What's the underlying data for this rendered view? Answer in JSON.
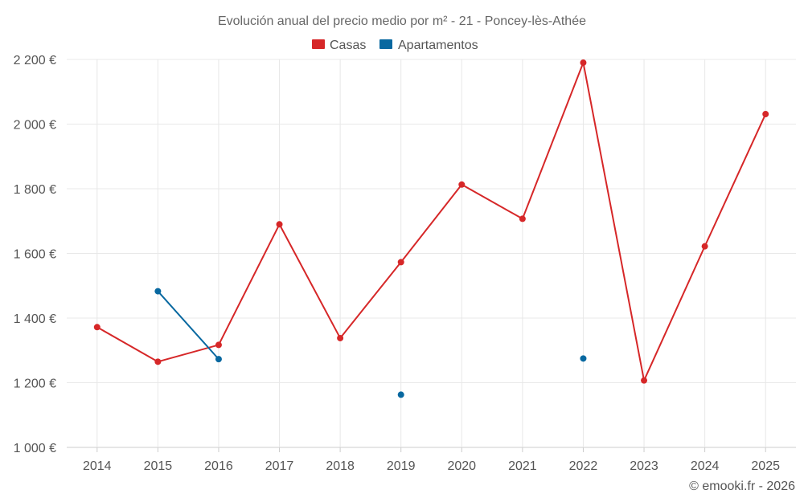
{
  "chart_data": {
    "type": "line",
    "title": "Evolución anual del precio medio por m² - 21 - Poncey-lès-Athée",
    "xlabel": "",
    "ylabel": "",
    "ylim": [
      1000,
      2200
    ],
    "y_ticks": [
      1000,
      1200,
      1400,
      1600,
      1800,
      2000,
      2200
    ],
    "y_tick_labels": [
      "1 000 €",
      "1 200 €",
      "1 400 €",
      "1 600 €",
      "1 800 €",
      "2 000 €",
      "2 200 €"
    ],
    "categories": [
      "2014",
      "2015",
      "2016",
      "2017",
      "2018",
      "2019",
      "2020",
      "2021",
      "2022",
      "2023",
      "2024",
      "2025"
    ],
    "legend_position": "top-center",
    "series": [
      {
        "name": "Casas",
        "color": "#d62728",
        "values": [
          1372,
          1265,
          1317,
          1690,
          1338,
          1573,
          1813,
          1707,
          2190,
          1207,
          1622,
          2031
        ]
      },
      {
        "name": "Apartamentos",
        "color": "#0868a0",
        "values": [
          null,
          1483,
          1273,
          null,
          null,
          1163,
          null,
          null,
          1275,
          null,
          null,
          null
        ]
      }
    ],
    "credit": "© emooki.fr - 2026"
  }
}
